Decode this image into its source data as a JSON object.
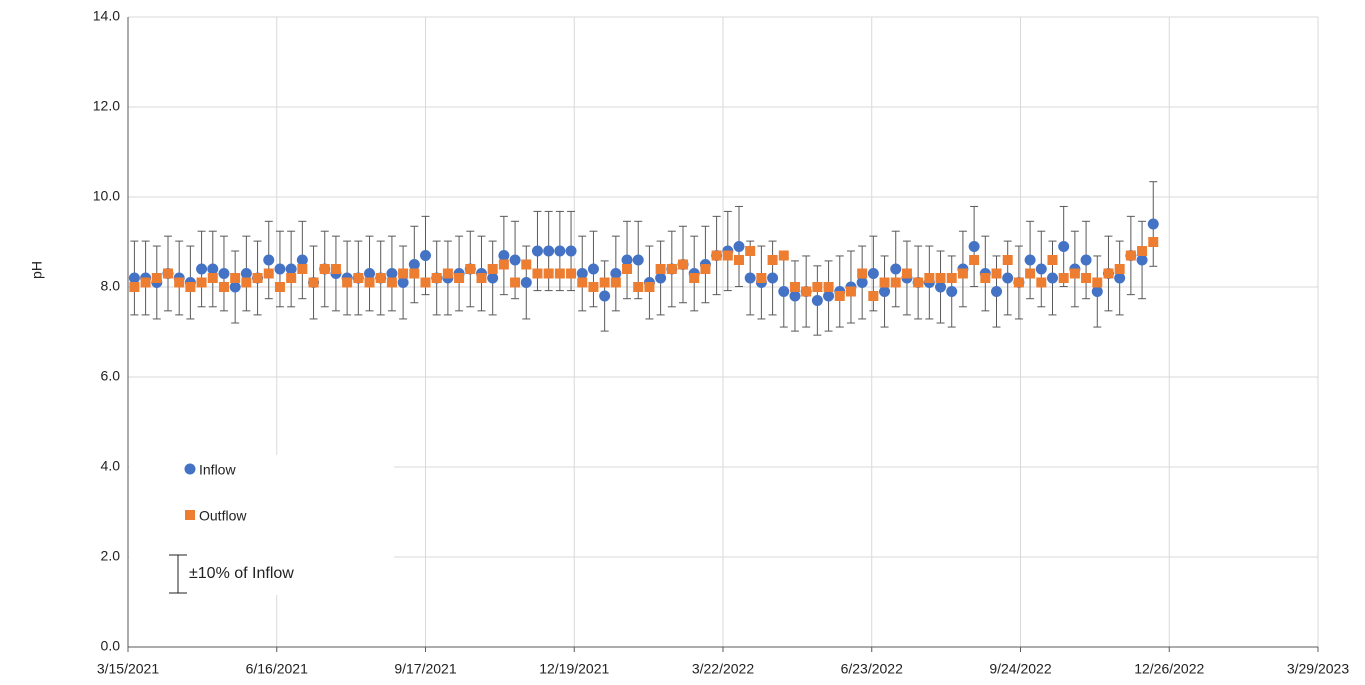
{
  "chart_data": {
    "type": "scatter",
    "ylabel": "pH",
    "x": [
      "2021-03-19",
      "2021-03-26",
      "2021-04-02",
      "2021-04-09",
      "2021-04-16",
      "2021-04-23",
      "2021-04-30",
      "2021-05-07",
      "2021-05-14",
      "2021-05-21",
      "2021-05-28",
      "2021-06-04",
      "2021-06-11",
      "2021-06-18",
      "2021-06-25",
      "2021-07-02",
      "2021-07-09",
      "2021-07-16",
      "2021-07-23",
      "2021-07-30",
      "2021-08-06",
      "2021-08-13",
      "2021-08-20",
      "2021-08-27",
      "2021-09-03",
      "2021-09-10",
      "2021-09-17",
      "2021-09-24",
      "2021-10-01",
      "2021-10-08",
      "2021-10-15",
      "2021-10-22",
      "2021-10-29",
      "2021-11-05",
      "2021-11-12",
      "2021-11-19",
      "2021-11-26",
      "2021-12-03",
      "2021-12-10",
      "2021-12-17",
      "2021-12-24",
      "2021-12-31",
      "2022-01-07",
      "2022-01-14",
      "2022-01-21",
      "2022-01-28",
      "2022-02-04",
      "2022-02-11",
      "2022-02-18",
      "2022-02-25",
      "2022-03-04",
      "2022-03-11",
      "2022-03-18",
      "2022-03-25",
      "2022-04-01",
      "2022-04-08",
      "2022-04-15",
      "2022-04-22",
      "2022-04-29",
      "2022-05-06",
      "2022-05-13",
      "2022-05-20",
      "2022-05-27",
      "2022-06-03",
      "2022-06-10",
      "2022-06-17",
      "2022-06-24",
      "2022-07-01",
      "2022-07-08",
      "2022-07-15",
      "2022-07-22",
      "2022-07-29",
      "2022-08-05",
      "2022-08-12",
      "2022-08-19",
      "2022-08-26",
      "2022-09-02",
      "2022-09-09",
      "2022-09-16",
      "2022-09-23",
      "2022-09-30",
      "2022-10-07",
      "2022-10-14",
      "2022-10-21",
      "2022-10-28",
      "2022-11-04",
      "2022-11-11",
      "2022-11-18",
      "2022-11-25",
      "2022-12-02",
      "2022-12-09",
      "2022-12-16"
    ],
    "series": [
      {
        "name": "Inflow",
        "color": "#4472c4",
        "marker": "circle",
        "values": [
          8.2,
          8.2,
          8.1,
          8.3,
          8.2,
          8.1,
          8.4,
          8.4,
          8.3,
          8.0,
          8.3,
          8.2,
          8.6,
          8.4,
          8.4,
          8.6,
          8.1,
          8.4,
          8.3,
          8.2,
          8.2,
          8.3,
          8.2,
          8.3,
          8.1,
          8.5,
          8.7,
          8.2,
          8.2,
          8.3,
          8.4,
          8.3,
          8.2,
          8.7,
          8.6,
          8.1,
          8.8,
          8.8,
          8.8,
          8.8,
          8.3,
          8.4,
          7.8,
          8.3,
          8.6,
          8.6,
          8.1,
          8.2,
          8.4,
          8.5,
          8.3,
          8.5,
          8.7,
          8.8,
          8.9,
          8.2,
          8.1,
          8.2,
          7.9,
          7.8,
          7.9,
          7.7,
          7.8,
          7.9,
          8.0,
          8.1,
          8.3,
          7.9,
          8.4,
          8.2,
          8.1,
          8.1,
          8.0,
          7.9,
          8.4,
          8.9,
          8.3,
          7.9,
          8.2,
          8.1,
          8.6,
          8.4,
          8.2,
          8.9,
          8.4,
          8.6,
          7.9,
          8.3,
          8.2,
          8.7,
          8.6,
          9.4
        ],
        "errors": [
          0.82,
          0.82,
          0.81,
          0.83,
          0.82,
          0.81,
          0.84,
          0.84,
          0.83,
          0.8,
          0.83,
          0.82,
          0.86,
          0.84,
          0.84,
          0.86,
          0.81,
          0.84,
          0.83,
          0.82,
          0.82,
          0.83,
          0.82,
          0.83,
          0.81,
          0.85,
          0.87,
          0.82,
          0.82,
          0.83,
          0.84,
          0.83,
          0.82,
          0.87,
          0.86,
          0.81,
          0.88,
          0.88,
          0.88,
          0.88,
          0.83,
          0.84,
          0.78,
          0.83,
          0.86,
          0.86,
          0.81,
          0.82,
          0.84,
          0.85,
          0.83,
          0.85,
          0.87,
          0.88,
          0.89,
          0.82,
          0.81,
          0.82,
          0.79,
          0.78,
          0.79,
          0.77,
          0.78,
          0.79,
          0.8,
          0.81,
          0.83,
          0.79,
          0.84,
          0.82,
          0.81,
          0.81,
          0.8,
          0.79,
          0.84,
          0.89,
          0.83,
          0.79,
          0.82,
          0.81,
          0.86,
          0.84,
          0.82,
          0.89,
          0.84,
          0.86,
          0.79,
          0.83,
          0.82,
          0.87,
          0.86,
          0.94
        ]
      },
      {
        "name": "Outflow",
        "color": "#ed7d31",
        "marker": "square",
        "values": [
          8.0,
          8.1,
          8.2,
          8.3,
          8.1,
          8.0,
          8.1,
          8.2,
          8.0,
          8.2,
          8.1,
          8.2,
          8.3,
          8.0,
          8.2,
          8.4,
          8.1,
          8.4,
          8.4,
          8.1,
          8.2,
          8.1,
          8.2,
          8.1,
          8.3,
          8.3,
          8.1,
          8.2,
          8.3,
          8.2,
          8.4,
          8.2,
          8.4,
          8.5,
          8.1,
          8.5,
          8.3,
          8.3,
          8.3,
          8.3,
          8.1,
          8.0,
          8.1,
          8.1,
          8.4,
          8.0,
          8.0,
          8.4,
          8.4,
          8.5,
          8.2,
          8.4,
          8.7,
          8.7,
          8.6,
          8.8,
          8.2,
          8.6,
          8.7,
          8.0,
          7.9,
          8.0,
          8.0,
          7.8,
          7.9,
          8.3,
          7.8,
          8.1,
          8.1,
          8.3,
          8.1,
          8.2,
          8.2,
          8.2,
          8.3,
          8.6,
          8.2,
          8.3,
          8.6,
          8.1,
          8.3,
          8.1,
          8.6,
          8.2,
          8.3,
          8.2,
          8.1,
          8.3,
          8.4,
          8.7,
          8.8,
          9.0
        ]
      }
    ],
    "error_label": "±10% of Inflow",
    "error_color": "#595959",
    "xlim": [
      "2021-03-15",
      "2023-03-29"
    ],
    "xticks": [
      {
        "value": "2021-03-15",
        "label": "3/15/2021"
      },
      {
        "value": "2021-06-16",
        "label": "6/16/2021"
      },
      {
        "value": "2021-09-17",
        "label": "9/17/2021"
      },
      {
        "value": "2021-12-19",
        "label": "12/19/2021"
      },
      {
        "value": "2022-03-22",
        "label": "3/22/2022"
      },
      {
        "value": "2022-06-23",
        "label": "6/23/2022"
      },
      {
        "value": "2022-09-24",
        "label": "9/24/2022"
      },
      {
        "value": "2022-12-26",
        "label": "12/26/2022"
      },
      {
        "value": "2023-03-29",
        "label": "3/29/2023"
      }
    ],
    "ylim": [
      0,
      14
    ],
    "yticks": [
      {
        "value": 0,
        "label": "0.0"
      },
      {
        "value": 2,
        "label": "2.0"
      },
      {
        "value": 4,
        "label": "4.0"
      },
      {
        "value": 6,
        "label": "6.0"
      },
      {
        "value": 8,
        "label": "8.0"
      },
      {
        "value": 10,
        "label": "10.0"
      },
      {
        "value": 12,
        "label": "12.0"
      },
      {
        "value": 14,
        "label": "14.0"
      }
    ],
    "grid": true,
    "legend": "lower left"
  }
}
